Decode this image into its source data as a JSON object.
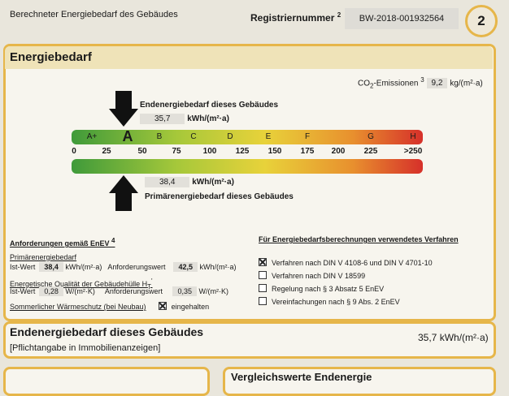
{
  "header": {
    "title": "Berechneter Energiebedarf des Gebäudes",
    "reg_label": "Registriernummer",
    "reg_sup": "2",
    "reg_number": "BW-2018-001932564",
    "page": "2"
  },
  "section": {
    "title": "Energiebedarf",
    "co2_label": "CO",
    "co2_sub": "2",
    "co2_text": "-Emissionen",
    "co2_sup": "3",
    "co2_value": "9,2",
    "co2_unit": "kg/(m²·a)"
  },
  "final_energy": {
    "label": "Endenergiebedarf dieses Gebäudes",
    "value": "35,7",
    "unit": "kWh/(m²·a)"
  },
  "scale": {
    "classes": [
      "A+",
      "A",
      "B",
      "C",
      "D",
      "E",
      "F",
      "G",
      "H"
    ],
    "ticks": [
      "0",
      "25",
      "50",
      "75",
      "100",
      "125",
      "150",
      "175",
      "200",
      "225",
      ">250"
    ]
  },
  "primary_energy": {
    "label": "Primärenergiebedarf dieses Gebäudes",
    "value": "38,4",
    "unit": "kWh/(m²·a)"
  },
  "requirements": {
    "title": "Anforderungen gemäß EnEV",
    "title_sup": "4",
    "primary_title": "Primärenergiebedarf",
    "ist_label": "Ist-Wert",
    "primary_ist": "38,4",
    "primary_unit": "kWh/(m²·a)",
    "req_label": "Anforderungswert",
    "primary_req": "42,5",
    "hull_title": "Energetische Qualität der Gebäudehülle H",
    "hull_sub": "T",
    "hull_sup": "'",
    "hull_ist": "0,28",
    "hull_unit": "W/(m²·K)",
    "hull_req": "0,35",
    "summer_label": "Sommerlicher Wärmeschutz (bei Neubau)",
    "summer_state": "eingehalten",
    "summer_checked": true
  },
  "procedures": {
    "title": "Für Energiebedarfsberechnungen verwendetes Verfahren",
    "items": [
      {
        "label": "Verfahren nach DIN V 4108-6 und DIN V 4701-10",
        "checked": true
      },
      {
        "label": "Verfahren nach DIN V 18599",
        "checked": false
      },
      {
        "label": "Regelung nach § 3 Absatz 5 EnEV",
        "checked": false
      },
      {
        "label": "Vereinfachungen nach § 9 Abs. 2 EnEV",
        "checked": false
      }
    ]
  },
  "summary": {
    "title": "Endenergiebedarf dieses Gebäudes",
    "note": "[Pflichtangabe in Immobilienanzeigen]",
    "value": "35,7 kWh/(m²·a)"
  },
  "next": {
    "right_title": "Vergleichswerte Endenergie"
  }
}
